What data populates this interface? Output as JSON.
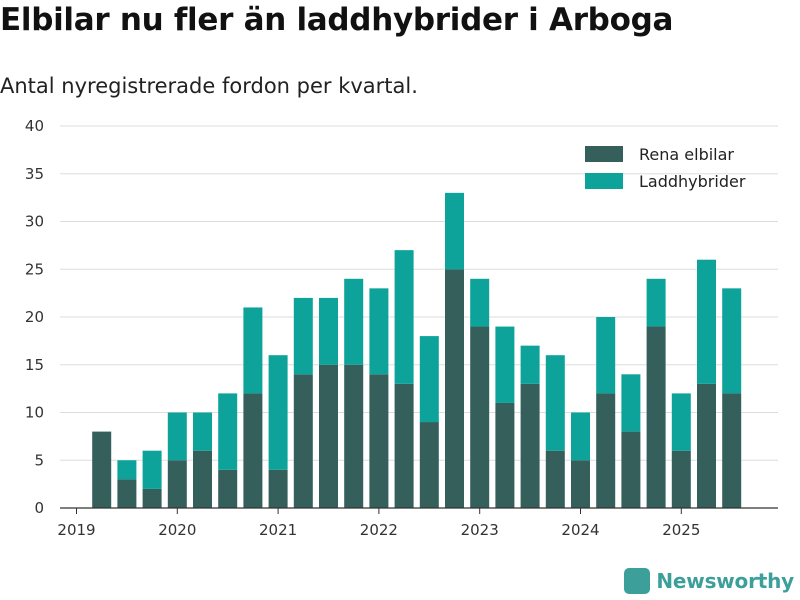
{
  "header": {
    "title": "Elbilar nu fler än laddhybrider i Arboga",
    "subtitle": "Antal nyregistrerade fordon per kvartal."
  },
  "brand": {
    "name": "Newsworthy"
  },
  "colors": {
    "elbilar": "#355f5b",
    "laddhybrider": "#0da39a",
    "grid": "#dddddd",
    "axis": "#333333"
  },
  "chart_data": {
    "type": "bar",
    "stacked": true,
    "title": "Elbilar nu fler än laddhybrider i Arboga",
    "subtitle": "Antal nyregistrerade fordon per kvartal.",
    "xlabel": "",
    "ylabel": "",
    "ylim": [
      0,
      40
    ],
    "yticks": [
      0,
      5,
      10,
      15,
      20,
      25,
      30,
      35,
      40
    ],
    "xticks": [
      "2019",
      "2020",
      "2021",
      "2022",
      "2023",
      "2024",
      "2025"
    ],
    "grid": true,
    "legend_position": "top-right",
    "categories": [
      "2019Q2",
      "2019Q3",
      "2019Q4",
      "2020Q1",
      "2020Q2",
      "2020Q3",
      "2020Q4",
      "2021Q1",
      "2021Q2",
      "2021Q3",
      "2021Q4",
      "2022Q1",
      "2022Q2",
      "2022Q3",
      "2022Q4",
      "2023Q1",
      "2023Q2",
      "2023Q3",
      "2023Q4",
      "2024Q1",
      "2024Q2",
      "2024Q3",
      "2024Q4",
      "2025Q1",
      "2025Q2",
      "2025Q3"
    ],
    "series": [
      {
        "name": "Rena elbilar",
        "color": "#355f5b",
        "values": [
          8,
          3,
          2,
          5,
          6,
          4,
          12,
          4,
          14,
          15,
          15,
          14,
          13,
          9,
          25,
          19,
          11,
          13,
          6,
          5,
          12,
          8,
          19,
          6,
          13,
          12
        ]
      },
      {
        "name": "Laddhybrider",
        "color": "#0da39a",
        "values": [
          0,
          2,
          4,
          5,
          4,
          8,
          9,
          12,
          8,
          7,
          9,
          9,
          14,
          9,
          8,
          5,
          8,
          4,
          10,
          5,
          8,
          6,
          5,
          6,
          13,
          11
        ]
      }
    ]
  }
}
